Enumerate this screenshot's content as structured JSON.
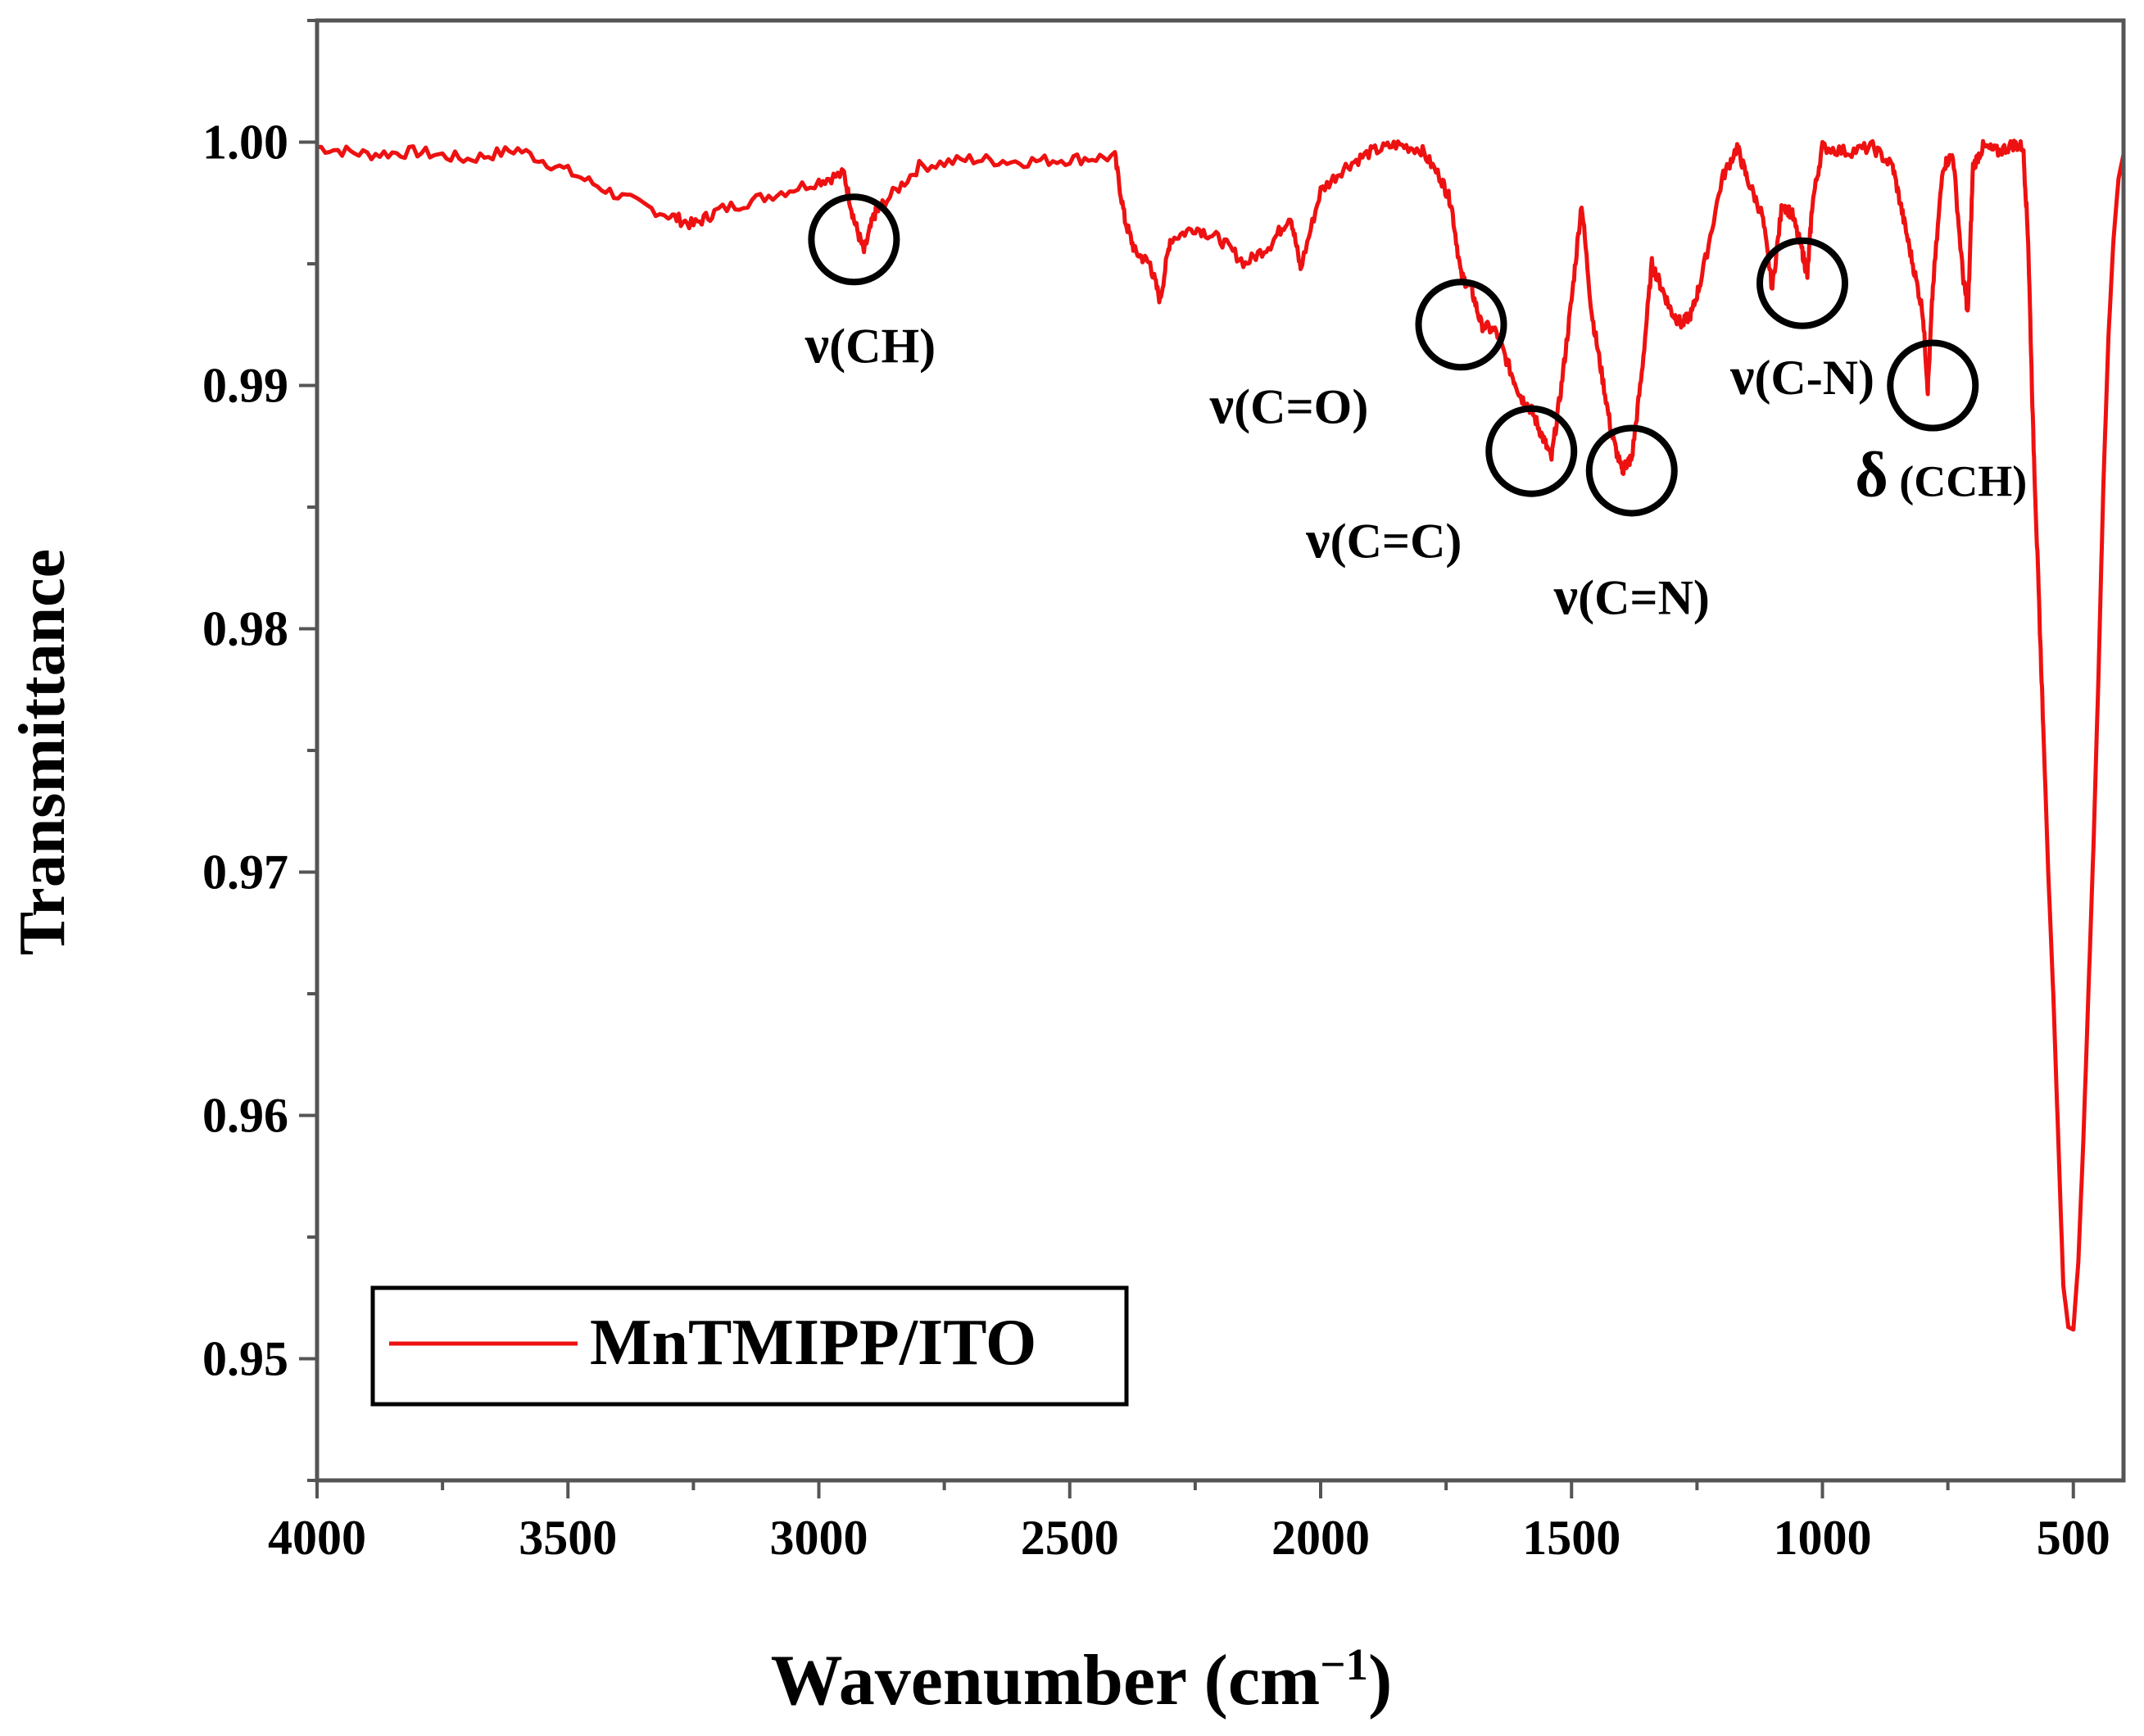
{
  "chart_data": {
    "type": "line",
    "title": "",
    "xlabel": "Wavenumber (cm",
    "xlabel_sup": "−1",
    "xlabel_close": ")",
    "ylabel": "Transmittance",
    "xlim": [
      4000,
      400
    ],
    "ylim": [
      0.945,
      1.005
    ],
    "x_ticks": [
      4000,
      3500,
      3000,
      2500,
      2000,
      1500,
      1000,
      500
    ],
    "x_tick_labels": [
      "4000",
      "3500",
      "3000",
      "2500",
      "2000",
      "1500",
      "1000",
      "500"
    ],
    "y_ticks": [
      1.0,
      0.99,
      0.98,
      0.97,
      0.96,
      0.95
    ],
    "y_tick_labels": [
      "1.00",
      "0.99",
      "0.98",
      "0.97",
      "0.96",
      "0.95"
    ],
    "grid": false,
    "legend": {
      "position": "bottom-left",
      "entries": [
        "MnTMIPP/ITO"
      ]
    },
    "series": [
      {
        "name": "MnTMIPP/ITO",
        "color": "#ee1111",
        "x": [
          4000,
          3900,
          3800,
          3700,
          3600,
          3500,
          3400,
          3300,
          3250,
          3200,
          3100,
          3000,
          2950,
          2930,
          2910,
          2890,
          2870,
          2800,
          2700,
          2600,
          2500,
          2410,
          2390,
          2370,
          2340,
          2320,
          2300,
          2250,
          2200,
          2150,
          2100,
          2060,
          2040,
          2000,
          1950,
          1900,
          1850,
          1800,
          1760,
          1740,
          1720,
          1700,
          1680,
          1650,
          1620,
          1600,
          1580,
          1560,
          1540,
          1520,
          1500,
          1480,
          1460,
          1440,
          1420,
          1400,
          1390,
          1380,
          1360,
          1340,
          1320,
          1300,
          1280,
          1260,
          1240,
          1200,
          1170,
          1150,
          1120,
          1100,
          1080,
          1060,
          1040,
          1030,
          1020,
          1000,
          950,
          900,
          860,
          840,
          820,
          800,
          790,
          780,
          760,
          740,
          720,
          710,
          700,
          680,
          650,
          620,
          600,
          590,
          580,
          570,
          560,
          550,
          540,
          530,
          520,
          510,
          500,
          490,
          480,
          470,
          460,
          450,
          440,
          430,
          420,
          410,
          400
        ],
        "y": [
          0.9998,
          0.9995,
          0.9996,
          0.9993,
          0.9997,
          0.9988,
          0.9978,
          0.997,
          0.9966,
          0.9972,
          0.9978,
          0.9984,
          0.9987,
          0.9968,
          0.9955,
          0.997,
          0.9975,
          0.999,
          0.9993,
          0.9992,
          0.9993,
          0.9994,
          0.9968,
          0.9955,
          0.995,
          0.9935,
          0.996,
          0.9965,
          0.996,
          0.995,
          0.9958,
          0.997,
          0.9948,
          0.998,
          0.999,
          0.9996,
          0.9999,
          0.9997,
          0.9985,
          0.9975,
          0.9945,
          0.994,
          0.9925,
          0.9922,
          0.9905,
          0.9895,
          0.989,
          0.988,
          0.987,
          0.99,
          0.9935,
          0.9975,
          0.993,
          0.9905,
          0.988,
          0.9865,
          0.9868,
          0.987,
          0.9905,
          0.995,
          0.994,
          0.993,
          0.9925,
          0.993,
          0.9945,
          0.9985,
          0.9998,
          0.9985,
          0.997,
          0.994,
          0.9975,
          0.997,
          0.9955,
          0.9945,
          0.9975,
          0.9998,
          0.9996,
          0.9998,
          0.999,
          0.997,
          0.995,
          0.993,
          0.9898,
          0.994,
          0.999,
          0.9995,
          0.9945,
          0.993,
          0.999,
          0.9998,
          0.9996,
          0.9999,
          0.9998,
          0.996,
          0.988,
          0.982,
          0.976,
          0.97,
          0.965,
          0.959,
          0.953,
          0.9513,
          0.9512,
          0.954,
          0.959,
          0.965,
          0.971,
          0.978,
          0.986,
          0.992,
          0.996,
          0.9985,
          0.9995
        ]
      }
    ],
    "annotations": [
      {
        "id": "vch",
        "symbol": "ν",
        "text": "(CH)",
        "x": 2930,
        "y": 0.996
      },
      {
        "id": "vco",
        "symbol": "ν",
        "text": "(C=O)",
        "x": 1720,
        "y": 0.9925
      },
      {
        "id": "vcc",
        "symbol": "ν",
        "text": "(C=C)",
        "x": 1580,
        "y": 0.9873
      },
      {
        "id": "vcn",
        "symbol": "ν",
        "text": "(C=N)",
        "x": 1380,
        "y": 0.9865
      },
      {
        "id": "vcn2",
        "symbol": "ν",
        "text": "(C-N)",
        "x": 1040,
        "y": 0.9942
      },
      {
        "id": "dcch",
        "symbol": "δ",
        "text": " (CCH)",
        "x": 780,
        "y": 0.99
      }
    ]
  }
}
